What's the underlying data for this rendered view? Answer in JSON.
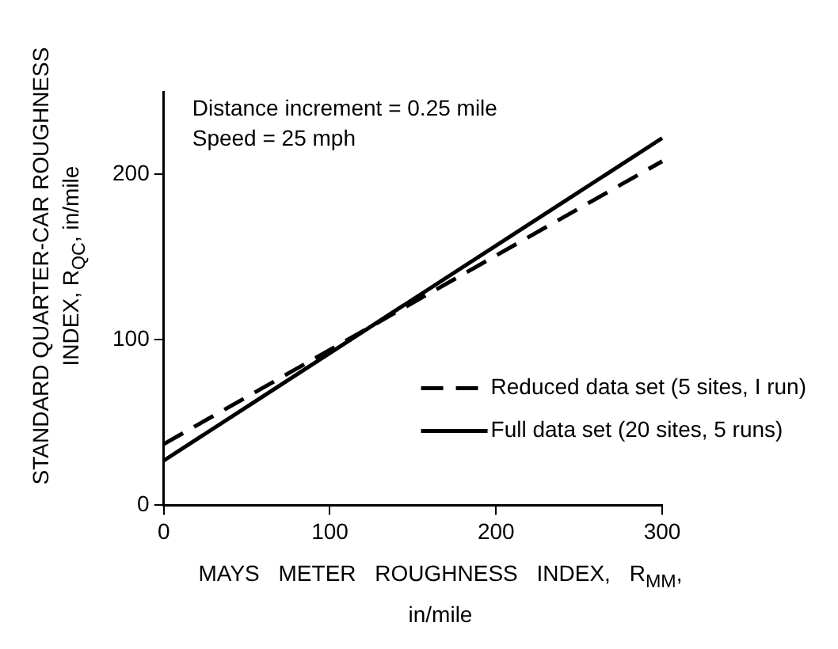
{
  "chart_data": {
    "type": "line",
    "xlabel": "MAYS METER ROUGHNESS INDEX, R$_{MM}$, in/mile",
    "ylabel": "STANDARD QUARTER-CAR ROUGHNESS INDEX, R$_{QC}$, in/mile",
    "annotations": [
      "Distance increment = 0.25 mile",
      "Speed = 25 mph"
    ],
    "xlim": [
      0,
      300
    ],
    "xticks": [
      0,
      100,
      200,
      300
    ],
    "ylim": [
      0,
      250
    ],
    "yticks": [
      0,
      100,
      200
    ],
    "grid": false,
    "legend": "bottom right",
    "marker": "none",
    "x": [
      0,
      300
    ],
    "series": [
      {
        "name": "Reduced data set (5 sites, I run)",
        "color": "#000000",
        "line_style": "dashed",
        "values": [
          37,
          208
        ]
      },
      {
        "name": "Full data set (20 sites, 5 runs)",
        "color": "#000000",
        "line_style": "solid",
        "values": [
          27,
          222
        ]
      }
    ]
  }
}
